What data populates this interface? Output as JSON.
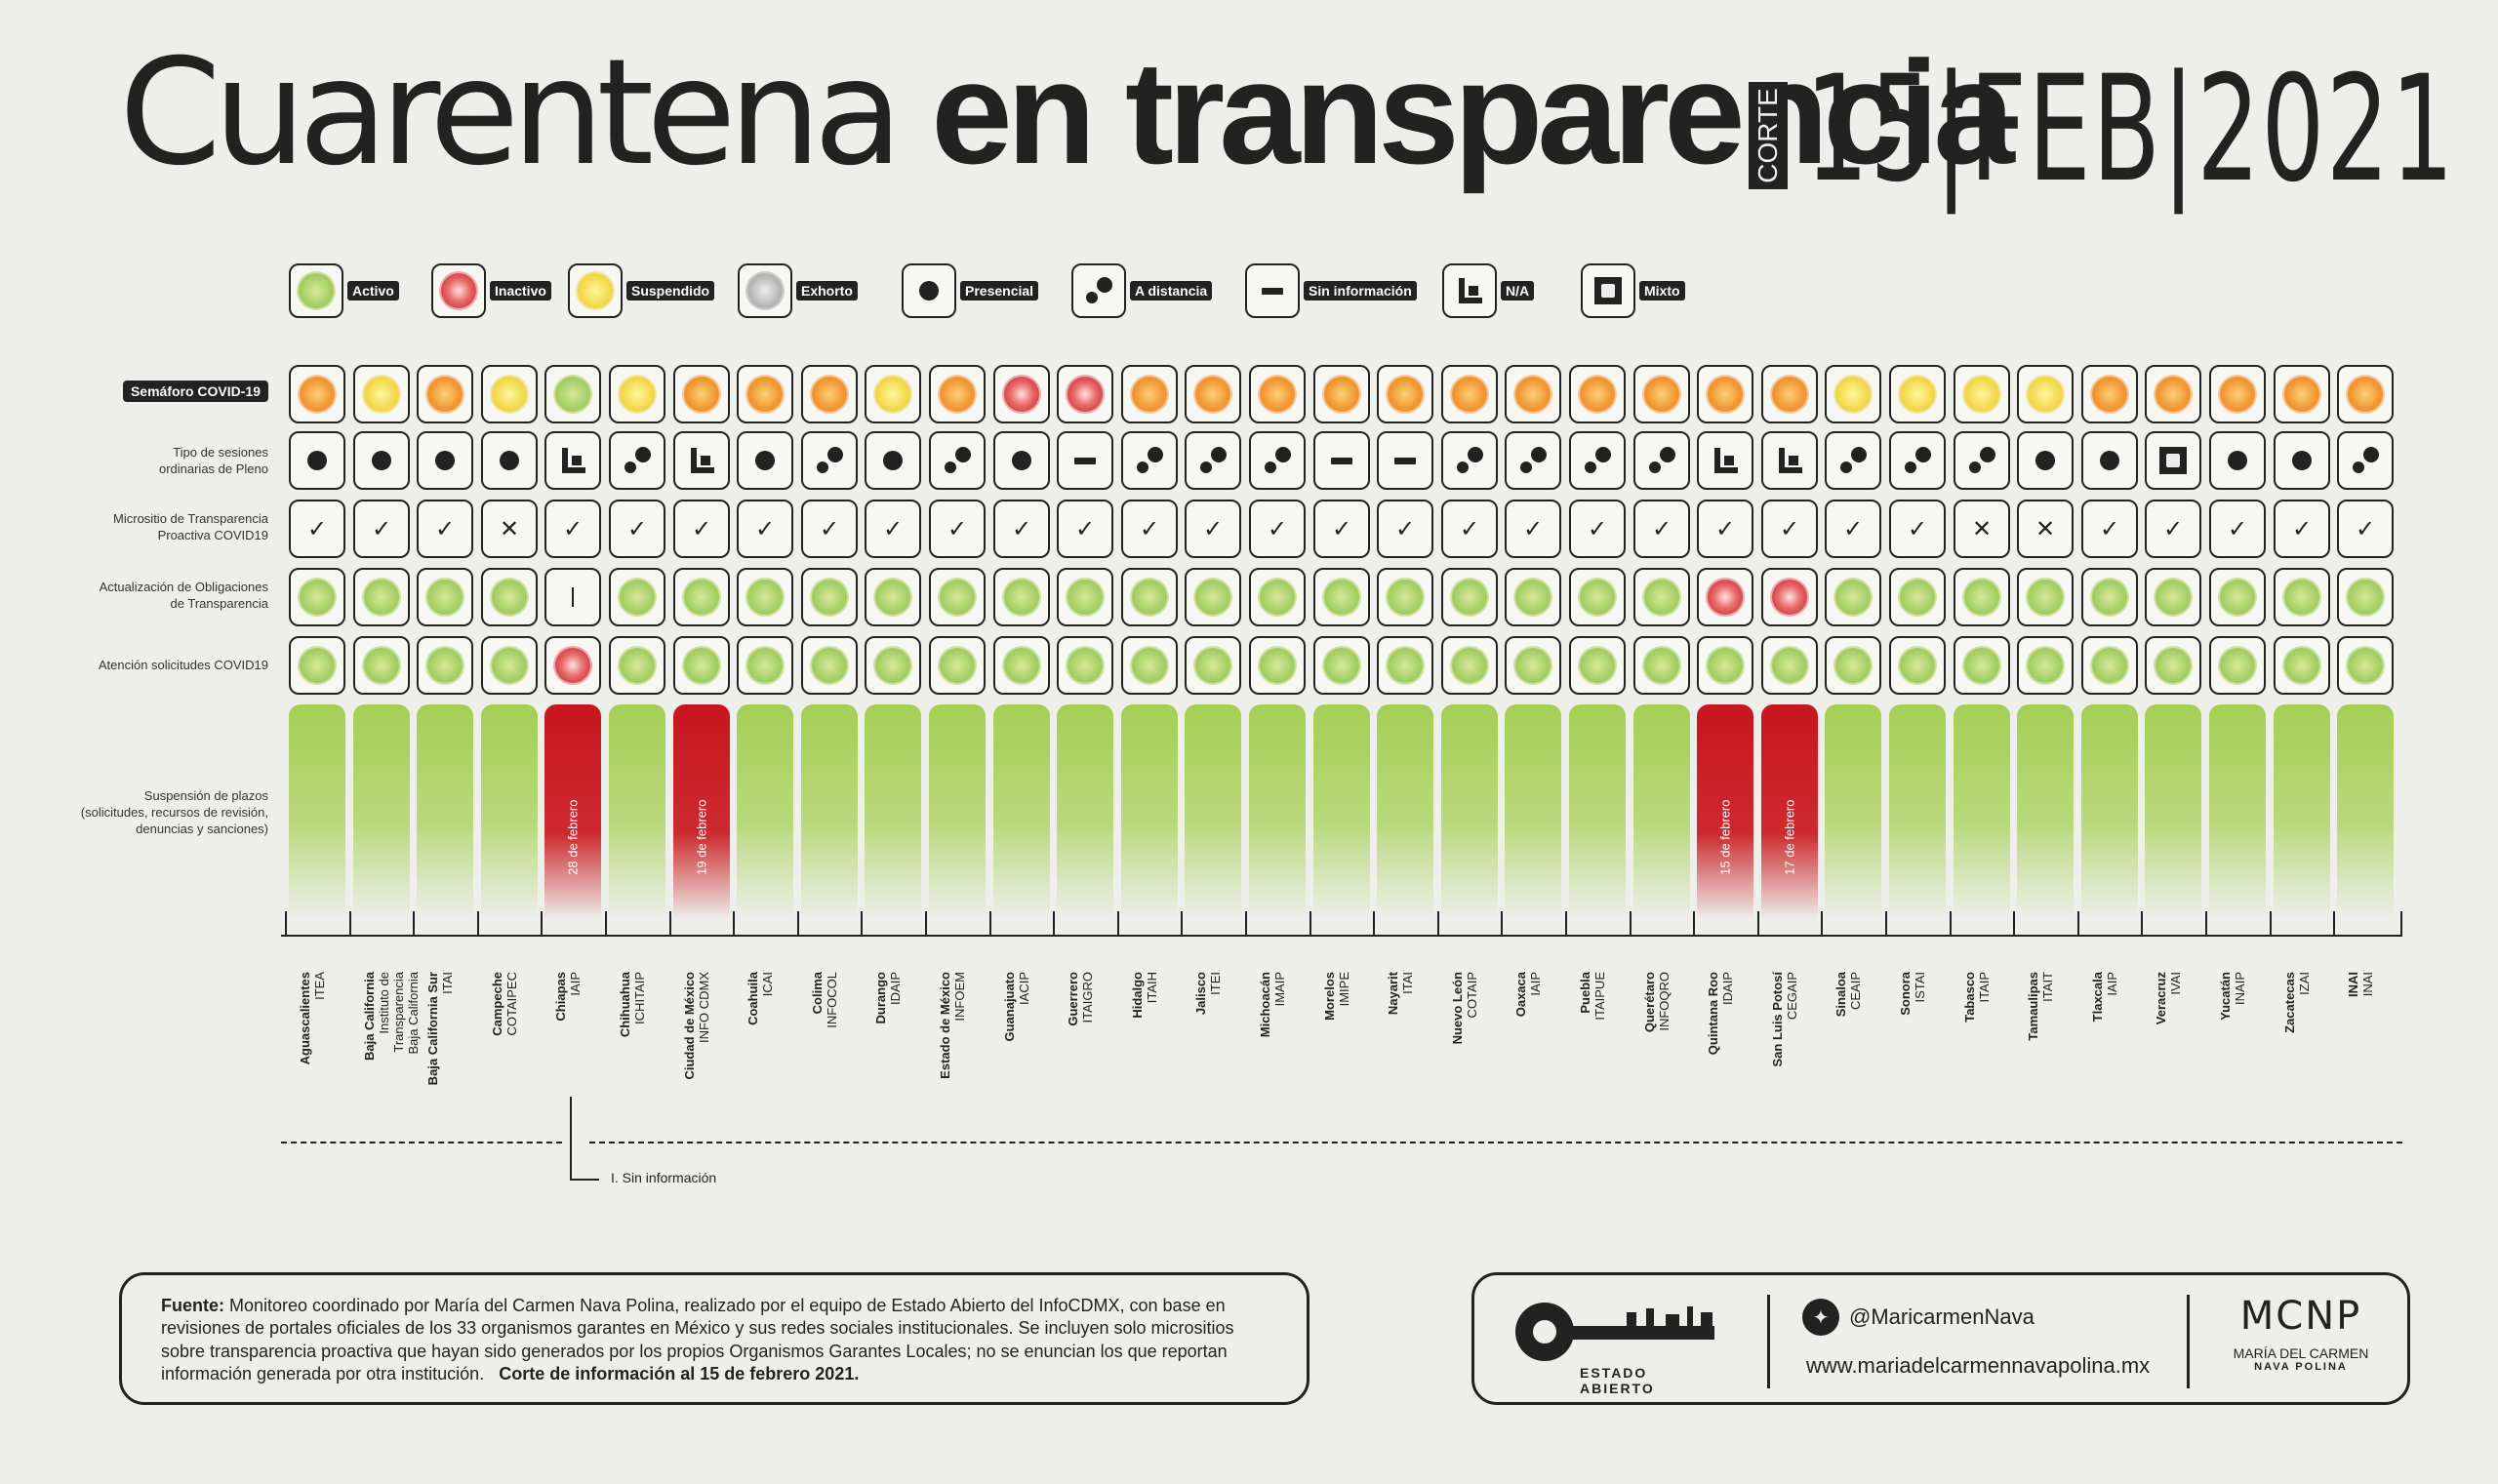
{
  "title": {
    "light": "Cuarentena",
    "bold": "en transparencia"
  },
  "corte_label": "CORTE",
  "date": "15|FEB|2021",
  "legend": [
    {
      "icon": "green-dot-icon",
      "label": "Activo"
    },
    {
      "icon": "red-dot-icon",
      "label": "Inactivo"
    },
    {
      "icon": "yellow-dot-icon",
      "label": "Suspendido"
    },
    {
      "icon": "gray-dot-icon",
      "label": "Exhorto"
    },
    {
      "icon": "presencial-icon",
      "label": "Presencial"
    },
    {
      "icon": "distancia-icon",
      "label": "A distancia"
    },
    {
      "icon": "sin-info-icon",
      "label": "Sin información"
    },
    {
      "icon": "na-icon",
      "label": "N/A"
    },
    {
      "icon": "mixto-icon",
      "label": "Mixto"
    }
  ],
  "row_labels": {
    "semaforo": "Semáforo COVID-19",
    "sesiones": "Tipo de sesiones\nordinarias de Pleno",
    "micrositio": "Micrositio de Transparencia\nProactiva COVID19",
    "actualizacion": "Actualización de Obligaciones\nde Transparencia",
    "atencion": "Atención solicitudes COVID19",
    "suspension": "Suspensión de plazos\n(solicitudes, recursos de revisión,\ndenuncias y sanciones)"
  },
  "states": [
    {
      "name": "Aguascalientes",
      "org": "ITEA",
      "sem": "orange",
      "ses": "p",
      "mic": "check",
      "act": "green",
      "ate": "green",
      "sus": "green",
      "sus_label": ""
    },
    {
      "name": "Baja California",
      "org": "Instituto de Transparencia\nBaja California",
      "sem": "yellow",
      "ses": "p",
      "mic": "check",
      "act": "green",
      "ate": "green",
      "sus": "green",
      "sus_label": ""
    },
    {
      "name": "Baja California Sur",
      "org": "ITAI",
      "sem": "orange",
      "ses": "p",
      "mic": "check",
      "act": "green",
      "ate": "green",
      "sus": "green",
      "sus_label": ""
    },
    {
      "name": "Campeche",
      "org": "COTAIPEC",
      "sem": "yellow",
      "ses": "p",
      "mic": "x",
      "act": "green",
      "ate": "green",
      "sus": "green",
      "sus_label": ""
    },
    {
      "name": "Chiapas",
      "org": "IAIP",
      "sem": "green",
      "ses": "na",
      "mic": "check",
      "act": "bar",
      "ate": "red",
      "sus": "red",
      "sus_label": "28 de febrero"
    },
    {
      "name": "Chihuahua",
      "org": "ICHITAIP",
      "sem": "yellow",
      "ses": "d",
      "mic": "check",
      "act": "green",
      "ate": "green",
      "sus": "green",
      "sus_label": ""
    },
    {
      "name": "Ciudad de México",
      "org": "INFO CDMX",
      "sem": "orange",
      "ses": "na",
      "mic": "check",
      "act": "green",
      "ate": "green",
      "sus": "red",
      "sus_label": "19 de febrero"
    },
    {
      "name": "Coahuila",
      "org": "ICAI",
      "sem": "orange",
      "ses": "p",
      "mic": "check",
      "act": "green",
      "ate": "green",
      "sus": "green",
      "sus_label": ""
    },
    {
      "name": "Colima",
      "org": "INFOCOL",
      "sem": "orange",
      "ses": "d",
      "mic": "check",
      "act": "green",
      "ate": "green",
      "sus": "green",
      "sus_label": ""
    },
    {
      "name": "Durango",
      "org": "IDAIP",
      "sem": "yellow",
      "ses": "p",
      "mic": "check",
      "act": "green",
      "ate": "green",
      "sus": "green",
      "sus_label": ""
    },
    {
      "name": "Estado de México",
      "org": "INFOEM",
      "sem": "orange",
      "ses": "d",
      "mic": "check",
      "act": "green",
      "ate": "green",
      "sus": "green",
      "sus_label": ""
    },
    {
      "name": "Guanajuato",
      "org": "IACIP",
      "sem": "red",
      "ses": "p",
      "mic": "check",
      "act": "green",
      "ate": "green",
      "sus": "green",
      "sus_label": ""
    },
    {
      "name": "Guerrero",
      "org": "ITAIGRO",
      "sem": "red",
      "ses": "s",
      "mic": "check",
      "act": "green",
      "ate": "green",
      "sus": "green",
      "sus_label": ""
    },
    {
      "name": "Hidalgo",
      "org": "ITAIH",
      "sem": "orange",
      "ses": "d",
      "mic": "check",
      "act": "green",
      "ate": "green",
      "sus": "green",
      "sus_label": ""
    },
    {
      "name": "Jalisco",
      "org": "ITEI",
      "sem": "orange",
      "ses": "d",
      "mic": "check",
      "act": "green",
      "ate": "green",
      "sus": "green",
      "sus_label": ""
    },
    {
      "name": "Michoacán",
      "org": "IMAIP",
      "sem": "orange",
      "ses": "d",
      "mic": "check",
      "act": "green",
      "ate": "green",
      "sus": "green",
      "sus_label": ""
    },
    {
      "name": "Morelos",
      "org": "IMIPE",
      "sem": "orange",
      "ses": "s",
      "mic": "check",
      "act": "green",
      "ate": "green",
      "sus": "green",
      "sus_label": ""
    },
    {
      "name": "Nayarit",
      "org": "ITAI",
      "sem": "orange",
      "ses": "s",
      "mic": "check",
      "act": "green",
      "ate": "green",
      "sus": "green",
      "sus_label": ""
    },
    {
      "name": "Nuevo León",
      "org": "COTAIP",
      "sem": "orange",
      "ses": "d",
      "mic": "check",
      "act": "green",
      "ate": "green",
      "sus": "green",
      "sus_label": ""
    },
    {
      "name": "Oaxaca",
      "org": "IAIP",
      "sem": "orange",
      "ses": "d",
      "mic": "check",
      "act": "green",
      "ate": "green",
      "sus": "green",
      "sus_label": ""
    },
    {
      "name": "Puebla",
      "org": "ITAIPUE",
      "sem": "orange",
      "ses": "d",
      "mic": "check",
      "act": "green",
      "ate": "green",
      "sus": "green",
      "sus_label": ""
    },
    {
      "name": "Querétaro",
      "org": "INFOQRO",
      "sem": "orange",
      "ses": "d",
      "mic": "check",
      "act": "green",
      "ate": "green",
      "sus": "green",
      "sus_label": ""
    },
    {
      "name": "Quintana Roo",
      "org": "IDAIP",
      "sem": "orange",
      "ses": "na",
      "mic": "check",
      "act": "red",
      "ate": "green",
      "sus": "red",
      "sus_label": "15 de febrero"
    },
    {
      "name": "San Luis Potosí",
      "org": "CEGAIP",
      "sem": "orange",
      "ses": "na",
      "mic": "check",
      "act": "red",
      "ate": "green",
      "sus": "red",
      "sus_label": "17 de febrero"
    },
    {
      "name": "Sinaloa",
      "org": "CEAIP",
      "sem": "yellow",
      "ses": "d",
      "mic": "check",
      "act": "green",
      "ate": "green",
      "sus": "green",
      "sus_label": ""
    },
    {
      "name": "Sonora",
      "org": "ISTAI",
      "sem": "yellow",
      "ses": "d",
      "mic": "check",
      "act": "green",
      "ate": "green",
      "sus": "green",
      "sus_label": ""
    },
    {
      "name": "Tabasco",
      "org": "ITAIP",
      "sem": "yellow",
      "ses": "d",
      "mic": "x",
      "act": "green",
      "ate": "green",
      "sus": "green",
      "sus_label": ""
    },
    {
      "name": "Tamaulipas",
      "org": "ITAIT",
      "sem": "yellow",
      "ses": "p",
      "mic": "x",
      "act": "green",
      "ate": "green",
      "sus": "green",
      "sus_label": ""
    },
    {
      "name": "Tlaxcala",
      "org": "IAIP",
      "sem": "orange",
      "ses": "p",
      "mic": "check",
      "act": "green",
      "ate": "green",
      "sus": "green",
      "sus_label": ""
    },
    {
      "name": "Veracruz",
      "org": "IVAI",
      "sem": "orange",
      "ses": "m",
      "mic": "check",
      "act": "green",
      "ate": "green",
      "sus": "green",
      "sus_label": ""
    },
    {
      "name": "Yucatán",
      "org": "INAIP",
      "sem": "orange",
      "ses": "p",
      "mic": "check",
      "act": "green",
      "ate": "green",
      "sus": "green",
      "sus_label": ""
    },
    {
      "name": "Zacatecas",
      "org": "IZAI",
      "sem": "orange",
      "ses": "p",
      "mic": "check",
      "act": "green",
      "ate": "green",
      "sus": "green",
      "sus_label": ""
    },
    {
      "name": "INAI",
      "org": "INAI",
      "sem": "orange",
      "ses": "d",
      "mic": "check",
      "act": "green",
      "ate": "green",
      "sus": "green",
      "sus_label": ""
    }
  ],
  "note": "I. Sin información",
  "footer": {
    "fuente_label": "Fuente:",
    "fuente_text": " Monitoreo coordinado por María del Carmen Nava Polina, realizado por el equipo de Estado Abierto del InfoCDMX, con base en revisiones de portales oficiales de los 33 organismos garantes en México y sus redes sociales institucionales. Se incluyen solo micrositios sobre transparencia proactiva que hayan sido generados por los propios Organismos Garantes Locales; no se enuncian los que reportan información generada por otra institución.",
    "corte_text": "Corte de información al 15 de febrero 2021."
  },
  "brand": {
    "estado_abierto": "ESTADO ABIERTO",
    "twitter": "@MaricarmenNava",
    "website": "www.mariadelcarmennavapolina.mx",
    "logo_letters": "MCNP",
    "logo_name1": "MARÍA DEL CARMEN",
    "logo_name2": "NAVA POLINA"
  },
  "colors": {
    "green": "#a3cf55",
    "orange": "#f39a35",
    "yellow": "#f3d84a",
    "red": "#c61d24",
    "gray": "#bbbbbb",
    "dark": "#222222"
  }
}
